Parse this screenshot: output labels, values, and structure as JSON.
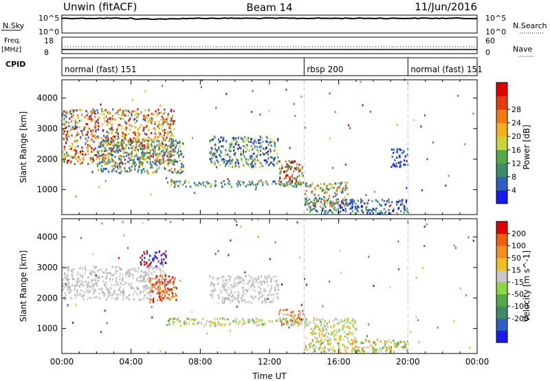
{
  "header": {
    "radar": "Unwin (fitACF)",
    "beam": "Beam 14",
    "date": "11/Jun/2016"
  },
  "panel_labels": {
    "nsky": "N.Sky",
    "nsearch": "N.Search",
    "freq": "Freq.",
    "freq_unit": "[MHz]",
    "nave": "Nave",
    "cpid": "CPID",
    "nsky_ticks": [
      "10^5",
      "10^0"
    ],
    "nsearch_ticks": [
      "10^5",
      "10^0"
    ],
    "freq_ticks": [
      "18",
      "8"
    ],
    "nave_ticks": [
      "60",
      "0"
    ]
  },
  "cpid_segments": [
    {
      "label": "normal (fast) 151",
      "start_hour": 0,
      "end_hour": 14
    },
    {
      "label": "rbsp 200",
      "start_hour": 14,
      "end_hour": 20
    },
    {
      "label": "normal (fast) 151",
      "start_hour": 20,
      "end_hour": 24
    }
  ],
  "chart_data": [
    {
      "type": "heatmap",
      "name": "power",
      "ylabel": "Slant Range [km]",
      "yticks": [
        1000,
        2000,
        3000,
        4000
      ],
      "ylim": [
        180,
        4600
      ],
      "xlim": [
        0,
        24
      ],
      "colorbar": {
        "label": "Power [dB]",
        "ticks": [
          "4",
          "8",
          "12",
          "16",
          "20",
          "24",
          "28"
        ],
        "colors": [
          "#1a1aee",
          "#2f5fc4",
          "#3f8a6a",
          "#55a84a",
          "#c8d43a",
          "#f0b020",
          "#f07a10",
          "#e83a10",
          "#e00000"
        ]
      },
      "scatter_regions": [
        {
          "t0": 0.0,
          "t1": 6.5,
          "r0": 1800,
          "r1": 3600,
          "colors": [
            "#e00000",
            "#f07a10",
            "#f0b020",
            "#c8d43a",
            "#2f5fc4"
          ]
        },
        {
          "t0": 2.0,
          "t1": 7.0,
          "r0": 1500,
          "r1": 2600,
          "colors": [
            "#55a84a",
            "#3f8a6a",
            "#2f5fc4",
            "#f0b020"
          ]
        },
        {
          "t0": 8.5,
          "t1": 12.5,
          "r0": 1700,
          "r1": 2700,
          "colors": [
            "#2f5fc4",
            "#3f8a6a",
            "#55a84a",
            "#c8d43a",
            "#1a1aee"
          ]
        },
        {
          "t0": 6.0,
          "t1": 14.0,
          "r0": 1050,
          "r1": 1250,
          "colors": [
            "#55a84a",
            "#3f8a6a",
            "#c8d43a",
            "#2f5fc4"
          ]
        },
        {
          "t0": 12.5,
          "t1": 14.0,
          "r0": 1100,
          "r1": 1900,
          "colors": [
            "#e00000",
            "#f07a10",
            "#3f8a6a",
            "#55a84a"
          ]
        },
        {
          "t0": 14.0,
          "t1": 20.0,
          "r0": 180,
          "r1": 650,
          "colors": [
            "#1a1aee",
            "#2f5fc4",
            "#3f8a6a",
            "#55a84a"
          ]
        },
        {
          "t0": 14.0,
          "t1": 16.5,
          "r0": 400,
          "r1": 1200,
          "colors": [
            "#2f5fc4",
            "#3f8a6a",
            "#c8d43a",
            "#f07a10"
          ]
        },
        {
          "t0": 19.0,
          "t1": 20.0,
          "r0": 1700,
          "r1": 2300,
          "colors": [
            "#2f5fc4",
            "#1a1aee"
          ]
        }
      ]
    },
    {
      "type": "heatmap",
      "name": "velocity",
      "xlabel": "Time UT",
      "ylabel": "Slant Range [km]",
      "yticks": [
        1000,
        2000,
        3000,
        4000
      ],
      "ylim": [
        180,
        4600
      ],
      "xlim": [
        0,
        24
      ],
      "xticks": [
        "00:00",
        "04:00",
        "08:00",
        "12:00",
        "16:00",
        "20:00",
        "00:00"
      ],
      "colorbar": {
        "label": "Velocity [m s^-1]",
        "ticks": [
          "200",
          "100",
          "50",
          "15",
          "-15",
          "-50",
          "-100",
          "-200"
        ],
        "colors": [
          "#1a1aee",
          "#2f5fc4",
          "#3f8a6a",
          "#55a84a",
          "#8ad840",
          "#c8c8c8",
          "#f0c020",
          "#f09020",
          "#f06010",
          "#e00000"
        ]
      },
      "scatter_regions": [
        {
          "t0": 0.0,
          "t1": 6.0,
          "r0": 1900,
          "r1": 3000,
          "colors": [
            "#c8c8c8",
            "#b4b4b4",
            "#d2d2d2"
          ]
        },
        {
          "t0": 5.0,
          "t1": 6.6,
          "r0": 1800,
          "r1": 2700,
          "colors": [
            "#e00000",
            "#f06010",
            "#f09020"
          ]
        },
        {
          "t0": 4.5,
          "t1": 6.0,
          "r0": 3000,
          "r1": 3500,
          "colors": [
            "#1a1aee",
            "#2f5fc4",
            "#e00000"
          ]
        },
        {
          "t0": 8.5,
          "t1": 12.5,
          "r0": 1800,
          "r1": 2700,
          "colors": [
            "#c8c8c8",
            "#b4b4b4",
            "#d2d2d2"
          ]
        },
        {
          "t0": 6.0,
          "t1": 14.0,
          "r0": 1050,
          "r1": 1300,
          "colors": [
            "#c8c8c8",
            "#8ad840",
            "#55a84a",
            "#f0c020"
          ]
        },
        {
          "t0": 12.5,
          "t1": 14.0,
          "r0": 1100,
          "r1": 1600,
          "colors": [
            "#f09020",
            "#f06010",
            "#c8c8c8"
          ]
        },
        {
          "t0": 14.0,
          "t1": 20.0,
          "r0": 180,
          "r1": 600,
          "colors": [
            "#f0c020",
            "#f09020",
            "#8ad840",
            "#55a84a",
            "#c8c8c8"
          ]
        },
        {
          "t0": 14.0,
          "t1": 17.0,
          "r0": 600,
          "r1": 1300,
          "colors": [
            "#c8c8c8",
            "#f0c020",
            "#8ad840"
          ]
        }
      ]
    }
  ],
  "colors": {
    "axis": "#000000",
    "dashed_divider": "#c8c8c8"
  }
}
